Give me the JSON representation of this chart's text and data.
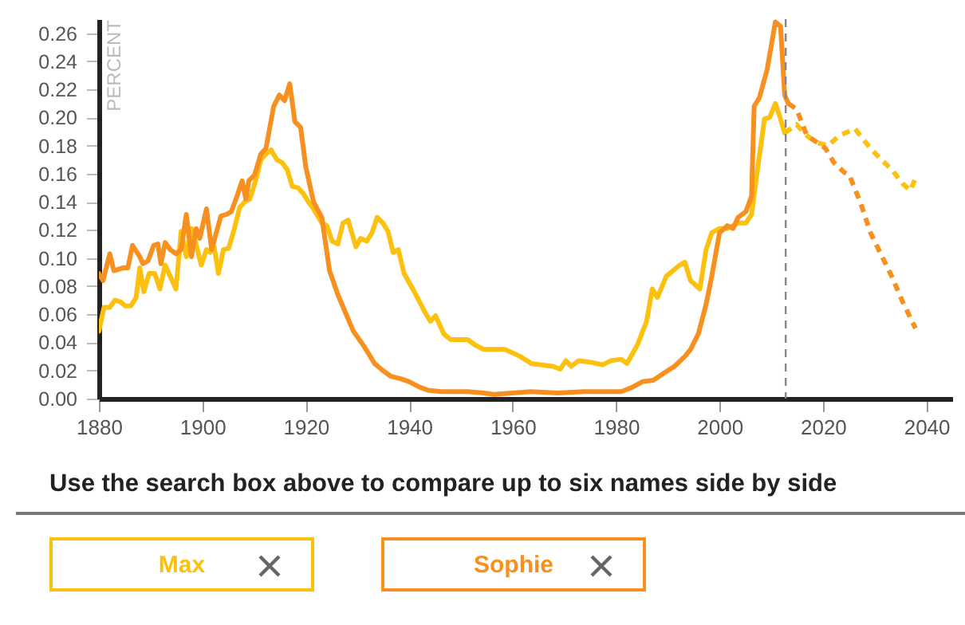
{
  "chart_data": {
    "type": "line",
    "ylabel": "PERCENT",
    "xlim": [
      1880,
      2045
    ],
    "xticks": [
      1880,
      1900,
      1920,
      1940,
      1960,
      1980,
      2000,
      2020,
      2040
    ],
    "ylim": [
      0,
      0.27
    ],
    "yticks": [
      {
        "value": 0,
        "label": "0.00"
      },
      {
        "value": 0.02,
        "label": "0.02"
      },
      {
        "value": 0.04,
        "label": "0.04"
      },
      {
        "value": 0.06,
        "label": "0.06"
      },
      {
        "value": 0.08,
        "label": "0.08"
      },
      {
        "value": 0.1,
        "label": "0.10"
      },
      {
        "value": 0.12,
        "label": "0.12"
      },
      {
        "value": 0.14,
        "label": "0.14"
      },
      {
        "value": 0.16,
        "label": "0.16"
      },
      {
        "value": 0.18,
        "label": "0.18"
      },
      {
        "value": 0.2,
        "label": "0.20"
      },
      {
        "value": 0.22,
        "label": "0.22"
      },
      {
        "value": 0.24,
        "label": "0.24"
      },
      {
        "value": 0.26,
        "label": "0.26"
      }
    ],
    "grid": false,
    "legend": "bottom",
    "annotations": [
      "Use the search box above to compare up to six names side by side"
    ],
    "ref_lines": [
      {
        "axis": "x",
        "value": 2012.8,
        "color": "#888888",
        "line_style": "dashed"
      }
    ],
    "series": [
      {
        "name": "Max",
        "color": "#fcc10f",
        "line_style": "solid",
        "x": [
          1880.0,
          1881.0,
          1882.1,
          1883.1,
          1884.1,
          1885.1,
          1886.2,
          1887.2,
          1887.9,
          1888.7,
          1889.7,
          1890.8,
          1891.8,
          1892.8,
          1893.8,
          1894.9,
          1895.9,
          1896.9,
          1897.9,
          1898.5,
          1899.8,
          1900.8,
          1901.5,
          1902.3,
          1903.1,
          1904.1,
          1905.1,
          1906.2,
          1907.2,
          1908.2,
          1909.2,
          1910.3,
          1911.3,
          1912.3,
          1913.3,
          1914.4,
          1915.4,
          1916.4,
          1917.4,
          1918.5,
          1919.5,
          1920.5,
          1921.5,
          1923.1,
          1924.1,
          1925.1,
          1926.2,
          1927.2,
          1928.2,
          1928.9,
          1929.7,
          1930.6,
          1931.8,
          1932.8,
          1933.8,
          1934.9,
          1935.9,
          1936.9,
          1937.9,
          1939.0,
          1941.0,
          1943.1,
          1944.1,
          1945.1,
          1946.7,
          1948.0,
          1950.3,
          1951.3,
          1952.8,
          1954.4,
          1956.4,
          1958.5,
          1961.5,
          1963.6,
          1965.6,
          1967.7,
          1969.2,
          1970.3,
          1971.3,
          1972.8,
          1974.9,
          1977.4,
          1979.0,
          1981.0,
          1982.1,
          1984.1,
          1985.9,
          1987.0,
          1988.0,
          1989.7,
          1992.3,
          1993.3,
          1994.4,
          1996.2,
          1997.4,
          1998.5,
          2000.0,
          2001.5,
          2002.6,
          2003.6,
          2005.1,
          2006.2,
          2007.2,
          2008.7,
          2009.7,
          2010.8,
          2011.8,
          2012.6
        ],
        "values": [
          0.048,
          0.065,
          0.065,
          0.07,
          0.069,
          0.066,
          0.066,
          0.072,
          0.093,
          0.076,
          0.089,
          0.089,
          0.078,
          0.095,
          0.087,
          0.078,
          0.119,
          0.101,
          0.121,
          0.114,
          0.095,
          0.106,
          0.104,
          0.108,
          0.089,
          0.106,
          0.107,
          0.121,
          0.136,
          0.14,
          0.142,
          0.155,
          0.17,
          0.174,
          0.177,
          0.17,
          0.168,
          0.163,
          0.151,
          0.15,
          0.146,
          0.14,
          0.135,
          0.125,
          0.123,
          0.112,
          0.11,
          0.125,
          0.127,
          0.118,
          0.108,
          0.114,
          0.112,
          0.118,
          0.129,
          0.125,
          0.119,
          0.104,
          0.106,
          0.089,
          0.076,
          0.061,
          0.055,
          0.059,
          0.046,
          0.042,
          0.042,
          0.042,
          0.038,
          0.035,
          0.035,
          0.035,
          0.03,
          0.025,
          0.024,
          0.023,
          0.021,
          0.027,
          0.023,
          0.027,
          0.026,
          0.024,
          0.027,
          0.028,
          0.025,
          0.038,
          0.055,
          0.078,
          0.072,
          0.087,
          0.095,
          0.097,
          0.084,
          0.078,
          0.106,
          0.118,
          0.121,
          0.121,
          0.123,
          0.125,
          0.125,
          0.131,
          0.159,
          0.199,
          0.2,
          0.21,
          0.199,
          0.189
        ]
      },
      {
        "color": "#fcc10f",
        "line_style": "dashed",
        "x": [
          2012.6,
          2014.9,
          2016.9,
          2019.0,
          2021.0,
          2023.1,
          2026.2,
          2029.2,
          2031.3,
          2033.3,
          2035.4,
          2036.9,
          2037.9
        ],
        "values": [
          0.189,
          0.195,
          0.187,
          0.182,
          0.18,
          0.187,
          0.192,
          0.178,
          0.17,
          0.163,
          0.153,
          0.148,
          0.157
        ]
      },
      {
        "name": "Sophie",
        "color": "#f7901e",
        "line_style": "solid",
        "x": [
          1880.0,
          1880.8,
          1882.1,
          1882.9,
          1884.6,
          1885.6,
          1886.5,
          1887.9,
          1888.5,
          1889.5,
          1890.6,
          1891.4,
          1892.0,
          1892.8,
          1893.8,
          1894.9,
          1895.9,
          1896.9,
          1897.9,
          1898.8,
          1899.5,
          1900.8,
          1901.8,
          1903.6,
          1904.6,
          1905.6,
          1906.7,
          1907.7,
          1908.4,
          1909.0,
          1910.1,
          1911.3,
          1912.3,
          1913.8,
          1914.9,
          1915.9,
          1916.9,
          1917.9,
          1919.0,
          1920.0,
          1921.5,
          1923.1,
          1924.6,
          1926.2,
          1927.7,
          1929.2,
          1931.3,
          1933.3,
          1934.9,
          1936.4,
          1938.5,
          1940.0,
          1942.1,
          1943.6,
          1946.2,
          1948.2,
          1951.3,
          1954.4,
          1956.4,
          1963.6,
          1968.7,
          1973.8,
          1981.0,
          1983.1,
          1985.1,
          1987.2,
          1989.2,
          1991.3,
          1993.3,
          1994.4,
          1995.9,
          1997.4,
          1998.5,
          2000.0,
          2001.5,
          2002.6,
          2003.6,
          2005.1,
          2006.2,
          2006.7,
          2007.7,
          2009.2,
          2010.8,
          2011.8,
          2012.6,
          2013.3
        ],
        "values": [
          0.089,
          0.084,
          0.103,
          0.091,
          0.093,
          0.093,
          0.109,
          0.101,
          0.096,
          0.098,
          0.109,
          0.11,
          0.096,
          0.111,
          0.106,
          0.103,
          0.106,
          0.131,
          0.101,
          0.121,
          0.114,
          0.135,
          0.106,
          0.13,
          0.131,
          0.133,
          0.144,
          0.155,
          0.142,
          0.155,
          0.159,
          0.174,
          0.178,
          0.208,
          0.216,
          0.212,
          0.224,
          0.197,
          0.193,
          0.165,
          0.14,
          0.129,
          0.091,
          0.074,
          0.061,
          0.048,
          0.037,
          0.025,
          0.02,
          0.016,
          0.014,
          0.012,
          0.008,
          0.006,
          0.005,
          0.005,
          0.005,
          0.004,
          0.003,
          0.005,
          0.004,
          0.005,
          0.005,
          0.008,
          0.012,
          0.013,
          0.018,
          0.023,
          0.03,
          0.035,
          0.046,
          0.067,
          0.087,
          0.118,
          0.123,
          0.121,
          0.129,
          0.133,
          0.144,
          0.208,
          0.214,
          0.234,
          0.268,
          0.265,
          0.216,
          0.21
        ]
      },
      {
        "color": "#f7901e",
        "line_style": "dashed",
        "x": [
          2013.3,
          2014.9,
          2016.9,
          2019.0,
          2020.5,
          2022.1,
          2024.1,
          2025.1,
          2027.2,
          2029.2,
          2031.3,
          2033.3,
          2035.4,
          2037.9
        ],
        "values": [
          0.21,
          0.206,
          0.187,
          0.182,
          0.178,
          0.168,
          0.161,
          0.159,
          0.14,
          0.118,
          0.102,
          0.087,
          0.069,
          0.05
        ]
      }
    ]
  }
}
